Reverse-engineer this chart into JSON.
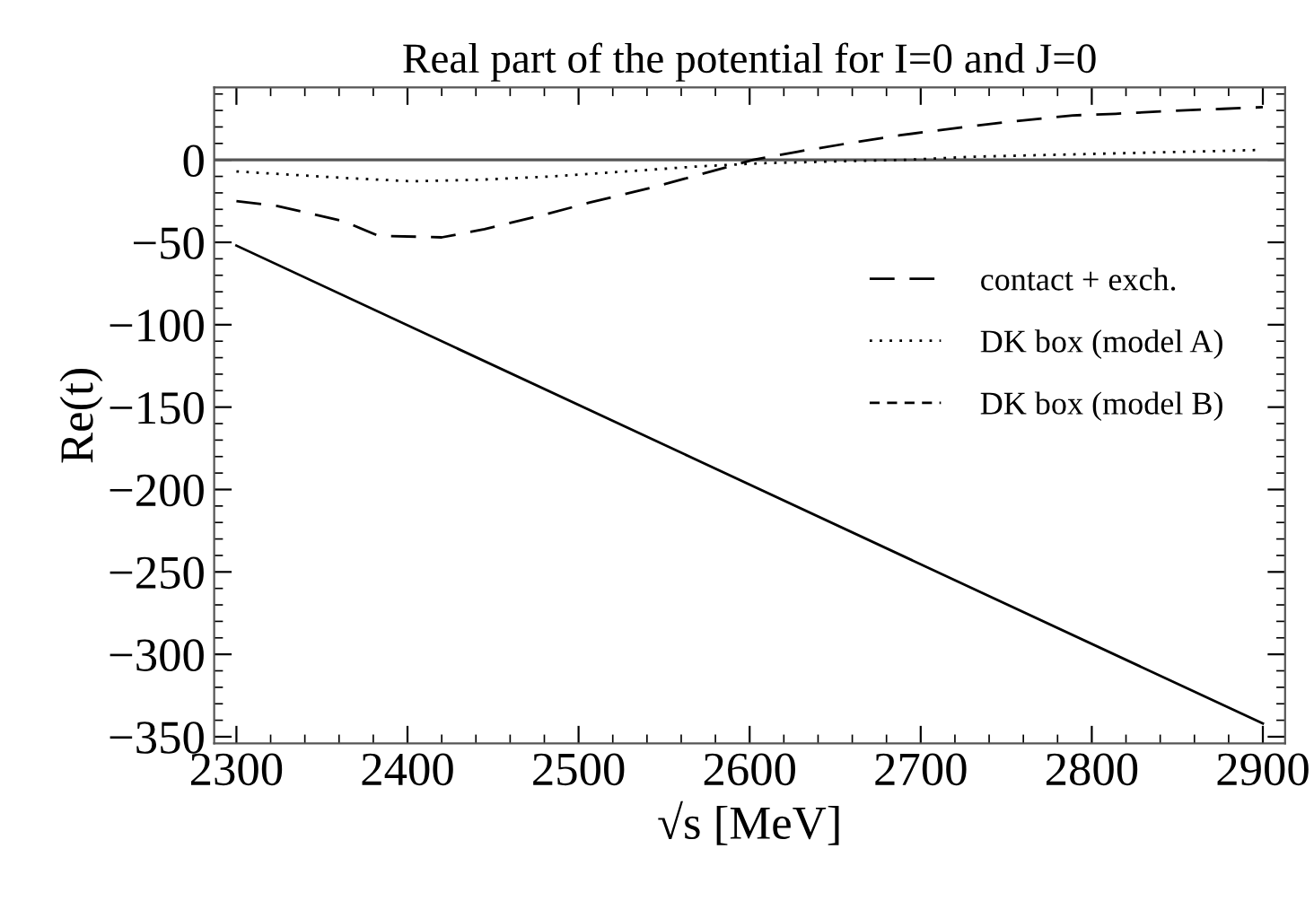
{
  "chart_data": {
    "type": "line",
    "title": "Real part of the potential for I=0 and J=0",
    "xlabel": "√s [MeV]",
    "ylabel": "Re(t)",
    "xlim": [
      2287,
      2913
    ],
    "ylim": [
      -354,
      44
    ],
    "xticks": [
      2300,
      2400,
      2500,
      2600,
      2700,
      2800,
      2900
    ],
    "yticks": [
      0,
      -50,
      -100,
      -150,
      -200,
      -250,
      -300,
      -350
    ],
    "grid": false,
    "legend": "top right",
    "marker": "none",
    "ref_lines": [
      {
        "axis": "y",
        "value": 0,
        "color": "#555555",
        "line_style": "solid"
      }
    ],
    "series": [
      {
        "name": "contact + exch.",
        "color": "#000000",
        "line_style": "dashed",
        "x": [
          2300,
          2324,
          2362,
          2383,
          2420,
          2445,
          2481,
          2506,
          2542,
          2567,
          2602,
          2628,
          2663,
          2688,
          2726,
          2751,
          2789,
          2814,
          2852,
          2877,
          2900
        ],
        "values": [
          -25,
          -28,
          -37,
          -46,
          -47,
          -42,
          -33,
          -26,
          -17,
          -10,
          0,
          5,
          11,
          15,
          20,
          23,
          27,
          28,
          30,
          31,
          32
        ]
      },
      {
        "name": "DK box (model A)",
        "color": "#000000",
        "line_style": "dotted",
        "x": [
          2300,
          2364,
          2403,
          2443,
          2485,
          2527,
          2569,
          2607,
          2648,
          2690,
          2732,
          2774,
          2816,
          2858,
          2896
        ],
        "values": [
          -7,
          -11,
          -13,
          -12,
          -10,
          -7,
          -4,
          -2,
          -1,
          0,
          2,
          3,
          4,
          5,
          6
        ]
      },
      {
        "name": "DK box (model B)",
        "color": "#000000",
        "line_style": "dashdot"
      },
      {
        "color": "#000000",
        "line_style": "solid",
        "x": [
          2300,
          2900
        ],
        "values": [
          -52,
          -342
        ]
      }
    ]
  }
}
